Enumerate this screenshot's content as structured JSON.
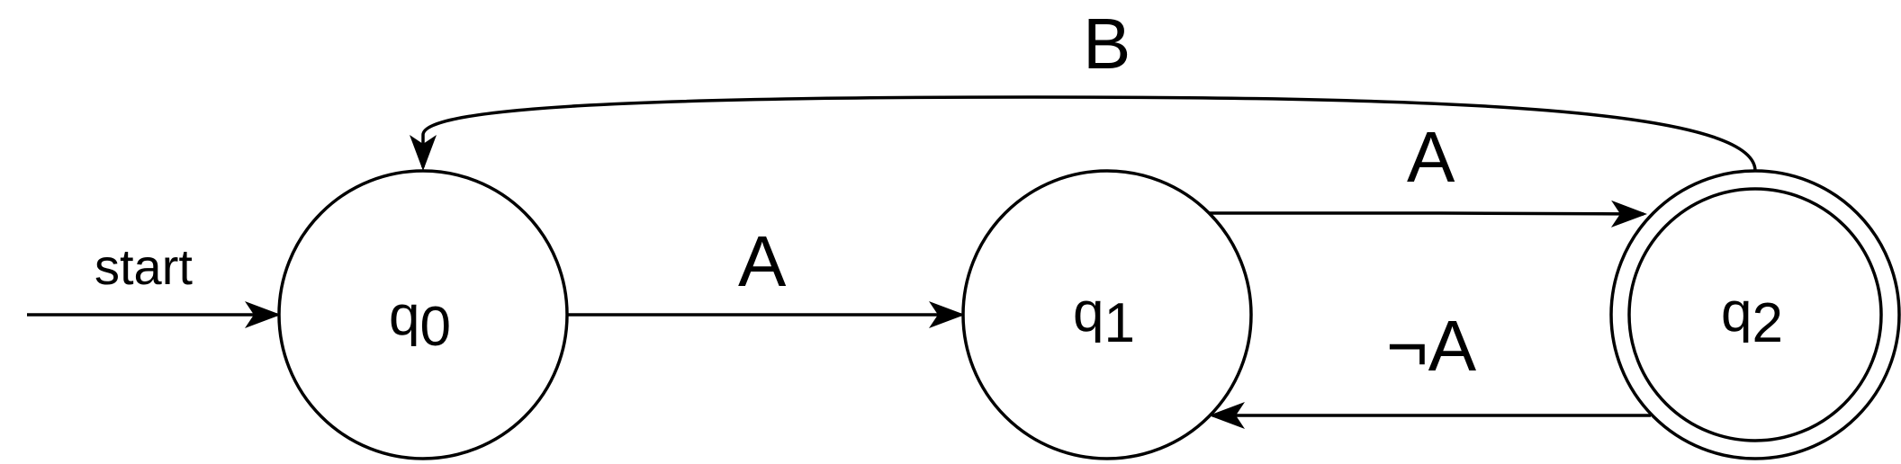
{
  "diagram": {
    "start_label": "start",
    "states": [
      {
        "id": "q0",
        "name": "q",
        "sub": "0",
        "accepting": false
      },
      {
        "id": "q1",
        "name": "q",
        "sub": "1",
        "accepting": false
      },
      {
        "id": "q2",
        "name": "q",
        "sub": "2",
        "accepting": true
      }
    ],
    "transitions": [
      {
        "from": "q0",
        "to": "q1",
        "label": "A"
      },
      {
        "from": "q1",
        "to": "q2",
        "label": "A"
      },
      {
        "from": "q2",
        "to": "q1",
        "label": "¬A"
      },
      {
        "from": "q2",
        "to": "q0",
        "label": "B"
      }
    ]
  }
}
